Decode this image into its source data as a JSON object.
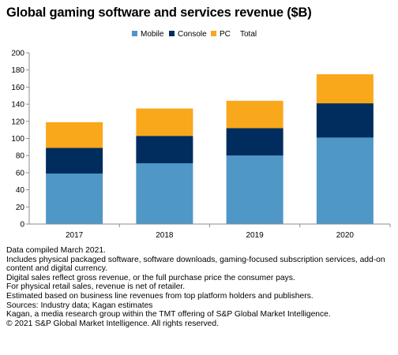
{
  "title": "Global gaming software and services revenue ($B)",
  "legend": [
    {
      "label": "Mobile",
      "color": "#4f97c6"
    },
    {
      "label": "Console",
      "color": "#002d5e"
    },
    {
      "label": "PC",
      "color": "#f9a81b"
    },
    {
      "label": "Total",
      "color": "#d9d9d9"
    }
  ],
  "chart_data": {
    "type": "bar",
    "stacked": true,
    "categories": [
      "2017",
      "2018",
      "2019",
      "2020"
    ],
    "series": [
      {
        "name": "Mobile",
        "values": [
          59,
          71,
          80,
          101
        ]
      },
      {
        "name": "Console",
        "values": [
          30,
          32,
          32,
          40
        ]
      },
      {
        "name": "PC",
        "values": [
          30,
          32,
          32,
          34
        ]
      },
      {
        "name": "Total",
        "values": [
          119,
          135,
          144,
          175
        ]
      }
    ],
    "ylim": [
      0,
      200
    ],
    "yticks": [
      "0",
      "20",
      "40",
      "60",
      "80",
      "100",
      "120",
      "140",
      "160",
      "180",
      "200"
    ],
    "grid": false,
    "legend_position": "top-center"
  },
  "notes": [
    "Data compiled March 2021.",
    "Includes physical packaged software, software downloads, gaming-focused subscription services, add-on content and digital currency.",
    "Digital sales reflect gross revenue, or the full purchase price the consumer pays.",
    "For physical retail sales, revenue is net of retailer.",
    "Estimated based on business line revenues from top platform holders and publishers.",
    "Sources: Industry data; Kagan estimates",
    "Kagan, a media research group within the TMT offering of S&P Global Market Intelligence.",
    "© 2021 S&P Global Market Intelligence. All rights reserved."
  ]
}
